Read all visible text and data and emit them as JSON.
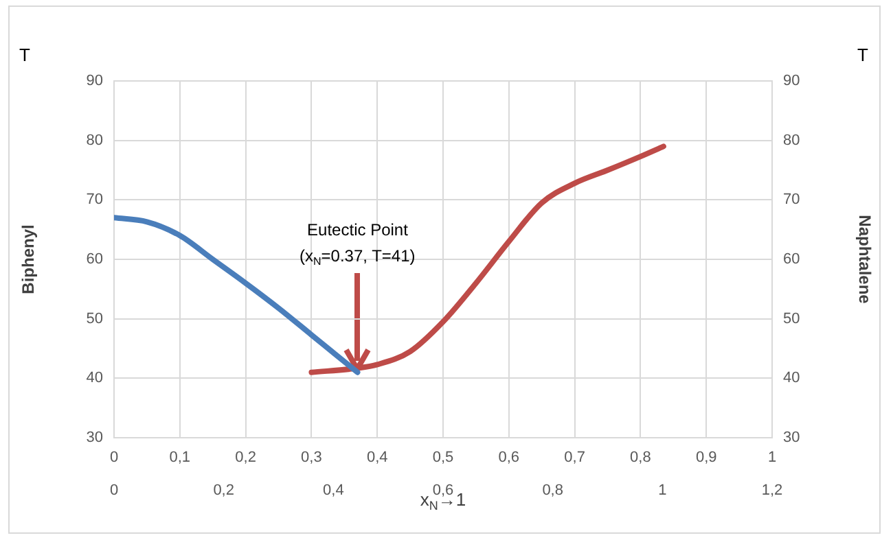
{
  "chart_data": {
    "type": "line",
    "ylabel": "Biphenyl",
    "y2label": "Naphtalene",
    "xlabel": "x$_{N}$→1",
    "x": [
      0,
      0.05,
      0.1,
      0.15,
      0.2,
      0.25,
      0.3,
      0.37
    ],
    "series": [
      {
        "color": "#4a7ebb",
        "values": [
          67,
          66.3,
          64,
          60,
          56,
          51.8,
          47.3,
          41
        ]
      },
      {
        "color": "#be4b48",
        "x": [
          0.3,
          0.37,
          0.4,
          0.45,
          0.5,
          0.55,
          0.6,
          0.65,
          0.7,
          0.75,
          0.8,
          0.835
        ],
        "values": [
          41,
          41.7,
          42.3,
          44.5,
          49.5,
          56,
          63,
          69.5,
          72.8,
          75,
          77.3,
          79
        ]
      }
    ],
    "xlim": [
      0,
      1
    ],
    "xticks": [
      {
        "value": 0,
        "label": "0"
      },
      {
        "value": 0.1,
        "label": "0,1"
      },
      {
        "value": 0.2,
        "label": "0,2"
      },
      {
        "value": 0.3,
        "label": "0,3"
      },
      {
        "value": 0.4,
        "label": "0,4"
      },
      {
        "value": 0.5,
        "label": "0,5"
      },
      {
        "value": 0.6,
        "label": "0,6"
      },
      {
        "value": 0.7,
        "label": "0,7"
      },
      {
        "value": 0.8,
        "label": "0,8"
      },
      {
        "value": 0.9,
        "label": "0,9"
      },
      {
        "value": 1,
        "label": "1"
      }
    ],
    "x2lim": [
      0,
      1.2
    ],
    "x2ticks": [
      {
        "value": 0,
        "label": "0"
      },
      {
        "value": 0.2,
        "label": "0,2"
      },
      {
        "value": 0.4,
        "label": "0,4"
      },
      {
        "value": 0.6,
        "label": "0,6"
      },
      {
        "value": 0.8,
        "label": "0,8"
      },
      {
        "value": 1,
        "label": "1"
      },
      {
        "value": 1.2,
        "label": "1,2"
      }
    ],
    "ylim": [
      30,
      90
    ],
    "yticks": [
      30,
      40,
      50,
      60,
      70,
      80,
      90
    ],
    "y2lim": [
      30,
      90
    ],
    "y2ticks": [
      30,
      40,
      50,
      60,
      70,
      80,
      90
    ],
    "annotations": [
      "T",
      "T",
      {
        "text": "Eutectic Point\n(x$_{N}$=0.37, T=41)",
        "x": 0.37,
        "y": 41
      }
    ],
    "grid": true,
    "legend": false,
    "marker": "none",
    "line_style": "solid"
  }
}
